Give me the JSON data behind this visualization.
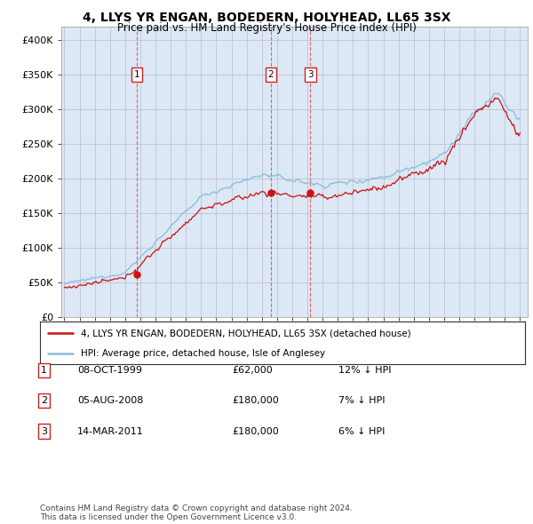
{
  "title": "4, LLYS YR ENGAN, BODEDERN, HOLYHEAD, LL65 3SX",
  "subtitle": "Price paid vs. HM Land Registry's House Price Index (HPI)",
  "legend_line1": "4, LLYS YR ENGAN, BODEDERN, HOLYHEAD, LL65 3SX (detached house)",
  "legend_line2": "HPI: Average price, detached house, Isle of Anglesey",
  "footer": "Contains HM Land Registry data © Crown copyright and database right 2024.\nThis data is licensed under the Open Government Licence v3.0.",
  "transactions": [
    {
      "num": 1,
      "date": "08-OCT-1999",
      "price": 62000,
      "hpi_diff": "12% ↓ HPI",
      "year": 1999.77
    },
    {
      "num": 2,
      "date": "05-AUG-2008",
      "price": 180000,
      "hpi_diff": "7% ↓ HPI",
      "year": 2008.6
    },
    {
      "num": 3,
      "date": "14-MAR-2011",
      "price": 180000,
      "hpi_diff": "6% ↓ HPI",
      "year": 2011.2
    }
  ],
  "bg_color": "#dce8f5",
  "red_line_color": "#cc1111",
  "blue_line_color": "#88bbdd",
  "grid_color": "#bbbbcc",
  "ylim": [
    0,
    420000
  ],
  "yticks": [
    0,
    50000,
    100000,
    150000,
    200000,
    250000,
    300000,
    350000,
    400000
  ],
  "ytick_labels": [
    "£0",
    "£50K",
    "£100K",
    "£150K",
    "£200K",
    "£250K",
    "£300K",
    "£350K",
    "£400K"
  ],
  "xlim_start": 1994.8,
  "xlim_end": 2025.5
}
